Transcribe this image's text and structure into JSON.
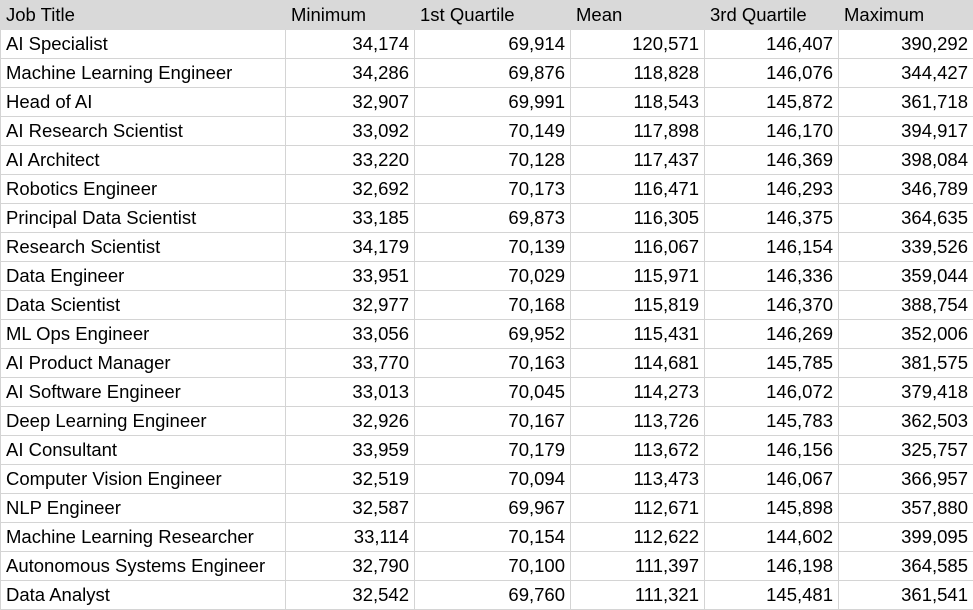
{
  "columns": [
    "Job Title",
    "Minimum",
    "1st Quartile",
    "Mean",
    "3rd Quartile",
    "Maximum"
  ],
  "rows": [
    [
      "AI Specialist",
      "34,174",
      "69,914",
      "120,571",
      "146,407",
      "390,292"
    ],
    [
      "Machine Learning Engineer",
      "34,286",
      "69,876",
      "118,828",
      "146,076",
      "344,427"
    ],
    [
      "Head of AI",
      "32,907",
      "69,991",
      "118,543",
      "145,872",
      "361,718"
    ],
    [
      "AI Research Scientist",
      "33,092",
      "70,149",
      "117,898",
      "146,170",
      "394,917"
    ],
    [
      "AI Architect",
      "33,220",
      "70,128",
      "117,437",
      "146,369",
      "398,084"
    ],
    [
      "Robotics Engineer",
      "32,692",
      "70,173",
      "116,471",
      "146,293",
      "346,789"
    ],
    [
      "Principal Data Scientist",
      "33,185",
      "69,873",
      "116,305",
      "146,375",
      "364,635"
    ],
    [
      "Research Scientist",
      "34,179",
      "70,139",
      "116,067",
      "146,154",
      "339,526"
    ],
    [
      "Data Engineer",
      "33,951",
      "70,029",
      "115,971",
      "146,336",
      "359,044"
    ],
    [
      "Data Scientist",
      "32,977",
      "70,168",
      "115,819",
      "146,370",
      "388,754"
    ],
    [
      "ML Ops Engineer",
      "33,056",
      "69,952",
      "115,431",
      "146,269",
      "352,006"
    ],
    [
      "AI Product Manager",
      "33,770",
      "70,163",
      "114,681",
      "145,785",
      "381,575"
    ],
    [
      "AI Software Engineer",
      "33,013",
      "70,045",
      "114,273",
      "146,072",
      "379,418"
    ],
    [
      "Deep Learning Engineer",
      "32,926",
      "70,167",
      "113,726",
      "145,783",
      "362,503"
    ],
    [
      "AI Consultant",
      "33,959",
      "70,179",
      "113,672",
      "146,156",
      "325,757"
    ],
    [
      "Computer Vision Engineer",
      "32,519",
      "70,094",
      "113,473",
      "146,067",
      "366,957"
    ],
    [
      "NLP Engineer",
      "32,587",
      "69,967",
      "112,671",
      "145,898",
      "357,880"
    ],
    [
      "Machine Learning Researcher",
      "33,114",
      "70,154",
      "112,622",
      "144,602",
      "399,095"
    ],
    [
      "Autonomous Systems Engineer",
      "32,790",
      "70,100",
      "111,397",
      "146,198",
      "364,585"
    ],
    [
      "Data Analyst",
      "32,542",
      "69,760",
      "111,321",
      "145,481",
      "361,541"
    ]
  ]
}
